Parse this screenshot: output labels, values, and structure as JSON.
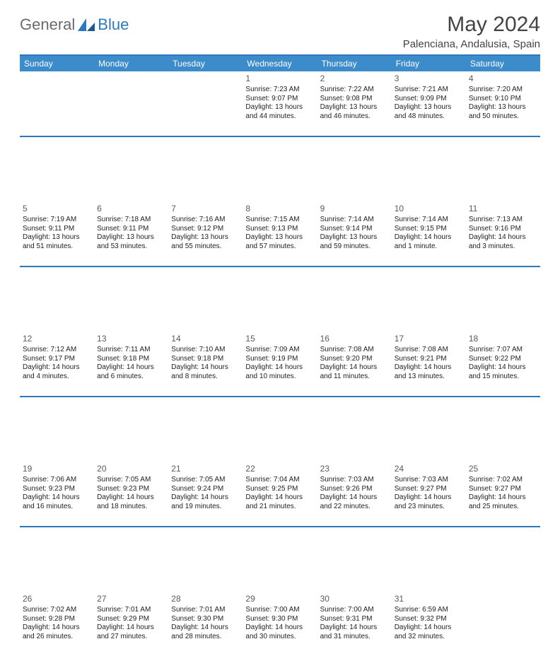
{
  "brand": {
    "gen": "General",
    "blue": "Blue"
  },
  "title": "May 2024",
  "location": "Palenciana, Andalusia, Spain",
  "colors": {
    "header_bg": "#3c8ccc",
    "header_text": "#ffffff",
    "accent_line": "#2d78bd",
    "logo_gray": "#6b6b6b",
    "logo_blue": "#2d78bd",
    "body_text": "#222222",
    "daynum": "#5a5a5a",
    "background": "#ffffff"
  },
  "fonts": {
    "family": "Arial",
    "title_size_pt": 22,
    "dayhdr_size_pt": 9,
    "cell_size_pt": 7.5
  },
  "calendar": {
    "type": "table",
    "columns": [
      "Sunday",
      "Monday",
      "Tuesday",
      "Wednesday",
      "Thursday",
      "Friday",
      "Saturday"
    ],
    "rows": [
      [
        null,
        null,
        null,
        {
          "d": "1",
          "sr": "7:23 AM",
          "ss": "9:07 PM",
          "dl": "13 hours and 44 minutes."
        },
        {
          "d": "2",
          "sr": "7:22 AM",
          "ss": "9:08 PM",
          "dl": "13 hours and 46 minutes."
        },
        {
          "d": "3",
          "sr": "7:21 AM",
          "ss": "9:09 PM",
          "dl": "13 hours and 48 minutes."
        },
        {
          "d": "4",
          "sr": "7:20 AM",
          "ss": "9:10 PM",
          "dl": "13 hours and 50 minutes."
        }
      ],
      [
        {
          "d": "5",
          "sr": "7:19 AM",
          "ss": "9:11 PM",
          "dl": "13 hours and 51 minutes."
        },
        {
          "d": "6",
          "sr": "7:18 AM",
          "ss": "9:11 PM",
          "dl": "13 hours and 53 minutes."
        },
        {
          "d": "7",
          "sr": "7:16 AM",
          "ss": "9:12 PM",
          "dl": "13 hours and 55 minutes."
        },
        {
          "d": "8",
          "sr": "7:15 AM",
          "ss": "9:13 PM",
          "dl": "13 hours and 57 minutes."
        },
        {
          "d": "9",
          "sr": "7:14 AM",
          "ss": "9:14 PM",
          "dl": "13 hours and 59 minutes."
        },
        {
          "d": "10",
          "sr": "7:14 AM",
          "ss": "9:15 PM",
          "dl": "14 hours and 1 minute."
        },
        {
          "d": "11",
          "sr": "7:13 AM",
          "ss": "9:16 PM",
          "dl": "14 hours and 3 minutes."
        }
      ],
      [
        {
          "d": "12",
          "sr": "7:12 AM",
          "ss": "9:17 PM",
          "dl": "14 hours and 4 minutes."
        },
        {
          "d": "13",
          "sr": "7:11 AM",
          "ss": "9:18 PM",
          "dl": "14 hours and 6 minutes."
        },
        {
          "d": "14",
          "sr": "7:10 AM",
          "ss": "9:18 PM",
          "dl": "14 hours and 8 minutes."
        },
        {
          "d": "15",
          "sr": "7:09 AM",
          "ss": "9:19 PM",
          "dl": "14 hours and 10 minutes."
        },
        {
          "d": "16",
          "sr": "7:08 AM",
          "ss": "9:20 PM",
          "dl": "14 hours and 11 minutes."
        },
        {
          "d": "17",
          "sr": "7:08 AM",
          "ss": "9:21 PM",
          "dl": "14 hours and 13 minutes."
        },
        {
          "d": "18",
          "sr": "7:07 AM",
          "ss": "9:22 PM",
          "dl": "14 hours and 15 minutes."
        }
      ],
      [
        {
          "d": "19",
          "sr": "7:06 AM",
          "ss": "9:23 PM",
          "dl": "14 hours and 16 minutes."
        },
        {
          "d": "20",
          "sr": "7:05 AM",
          "ss": "9:23 PM",
          "dl": "14 hours and 18 minutes."
        },
        {
          "d": "21",
          "sr": "7:05 AM",
          "ss": "9:24 PM",
          "dl": "14 hours and 19 minutes."
        },
        {
          "d": "22",
          "sr": "7:04 AM",
          "ss": "9:25 PM",
          "dl": "14 hours and 21 minutes."
        },
        {
          "d": "23",
          "sr": "7:03 AM",
          "ss": "9:26 PM",
          "dl": "14 hours and 22 minutes."
        },
        {
          "d": "24",
          "sr": "7:03 AM",
          "ss": "9:27 PM",
          "dl": "14 hours and 23 minutes."
        },
        {
          "d": "25",
          "sr": "7:02 AM",
          "ss": "9:27 PM",
          "dl": "14 hours and 25 minutes."
        }
      ],
      [
        {
          "d": "26",
          "sr": "7:02 AM",
          "ss": "9:28 PM",
          "dl": "14 hours and 26 minutes."
        },
        {
          "d": "27",
          "sr": "7:01 AM",
          "ss": "9:29 PM",
          "dl": "14 hours and 27 minutes."
        },
        {
          "d": "28",
          "sr": "7:01 AM",
          "ss": "9:30 PM",
          "dl": "14 hours and 28 minutes."
        },
        {
          "d": "29",
          "sr": "7:00 AM",
          "ss": "9:30 PM",
          "dl": "14 hours and 30 minutes."
        },
        {
          "d": "30",
          "sr": "7:00 AM",
          "ss": "9:31 PM",
          "dl": "14 hours and 31 minutes."
        },
        {
          "d": "31",
          "sr": "6:59 AM",
          "ss": "9:32 PM",
          "dl": "14 hours and 32 minutes."
        },
        null
      ]
    ]
  },
  "labels": {
    "sunrise": "Sunrise:",
    "sunset": "Sunset:",
    "daylight": "Daylight:"
  }
}
